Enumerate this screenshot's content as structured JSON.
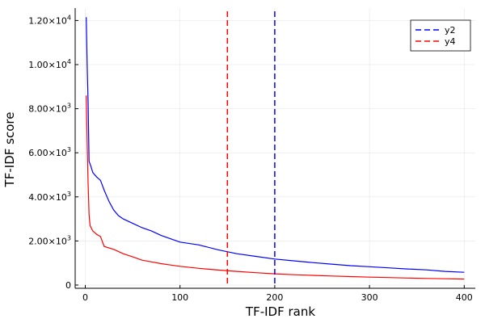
{
  "chart_data": {
    "type": "line",
    "xlabel": "TF-IDF rank",
    "ylabel": "TF-IDF score",
    "xlim": [
      0,
      400
    ],
    "ylim": [
      0,
      12500
    ],
    "x_ticks": [
      0,
      100,
      200,
      300,
      400
    ],
    "x_tick_labels": [
      "0",
      "100",
      "200",
      "300",
      "400"
    ],
    "y_ticks": [
      0,
      2000,
      4000,
      6000,
      8000,
      10000,
      12000
    ],
    "y_tick_labels": [
      {
        "mantissa": "0",
        "exp": ""
      },
      {
        "mantissa": "2.00×10",
        "exp": "3"
      },
      {
        "mantissa": "4.00×10",
        "exp": "3"
      },
      {
        "mantissa": "6.00×10",
        "exp": "3"
      },
      {
        "mantissa": "8.00×10",
        "exp": "3"
      },
      {
        "mantissa": "1.00×10",
        "exp": "4"
      },
      {
        "mantissa": "1.20×10",
        "exp": "4"
      }
    ],
    "grid": true,
    "legend_position": "top-right",
    "series": [
      {
        "key": "series-blue",
        "color": "#0000ff",
        "style": "solid",
        "points": [
          [
            1,
            12150
          ],
          [
            2,
            10000
          ],
          [
            3,
            8300
          ],
          [
            4,
            5600
          ],
          [
            5,
            5500
          ],
          [
            8,
            5100
          ],
          [
            12,
            4900
          ],
          [
            16,
            4750
          ],
          [
            20,
            4300
          ],
          [
            25,
            3800
          ],
          [
            30,
            3400
          ],
          [
            35,
            3150
          ],
          [
            40,
            3000
          ],
          [
            50,
            2800
          ],
          [
            60,
            2600
          ],
          [
            70,
            2450
          ],
          [
            80,
            2250
          ],
          [
            90,
            2100
          ],
          [
            100,
            1950
          ],
          [
            120,
            1820
          ],
          [
            140,
            1600
          ],
          [
            160,
            1420
          ],
          [
            180,
            1300
          ],
          [
            200,
            1180
          ],
          [
            220,
            1100
          ],
          [
            240,
            1020
          ],
          [
            260,
            950
          ],
          [
            280,
            880
          ],
          [
            300,
            830
          ],
          [
            320,
            780
          ],
          [
            340,
            730
          ],
          [
            360,
            690
          ],
          [
            380,
            620
          ],
          [
            400,
            580
          ]
        ]
      },
      {
        "key": "series-red",
        "color": "#ff0000",
        "style": "solid",
        "points": [
          [
            1,
            8600
          ],
          [
            2,
            6500
          ],
          [
            3,
            4600
          ],
          [
            4,
            3200
          ],
          [
            5,
            2700
          ],
          [
            8,
            2450
          ],
          [
            12,
            2300
          ],
          [
            16,
            2200
          ],
          [
            20,
            1750
          ],
          [
            30,
            1620
          ],
          [
            40,
            1420
          ],
          [
            50,
            1280
          ],
          [
            60,
            1130
          ],
          [
            70,
            1050
          ],
          [
            80,
            970
          ],
          [
            90,
            910
          ],
          [
            100,
            850
          ],
          [
            120,
            760
          ],
          [
            140,
            680
          ],
          [
            160,
            620
          ],
          [
            180,
            560
          ],
          [
            200,
            510
          ],
          [
            220,
            470
          ],
          [
            240,
            440
          ],
          [
            260,
            410
          ],
          [
            280,
            385
          ],
          [
            300,
            360
          ],
          [
            320,
            340
          ],
          [
            340,
            320
          ],
          [
            360,
            300
          ],
          [
            380,
            285
          ],
          [
            400,
            270
          ]
        ]
      },
      {
        "key": "y2",
        "name": "y2",
        "color": "#0000ff",
        "style": "dashed",
        "vline_x": 200
      },
      {
        "key": "y4",
        "name": "y4",
        "color": "#ff0000",
        "style": "dashed",
        "vline_x": 150
      }
    ],
    "legend": [
      {
        "label": "y2",
        "color": "#0000ff"
      },
      {
        "label": "y4",
        "color": "#ff0000"
      }
    ]
  }
}
